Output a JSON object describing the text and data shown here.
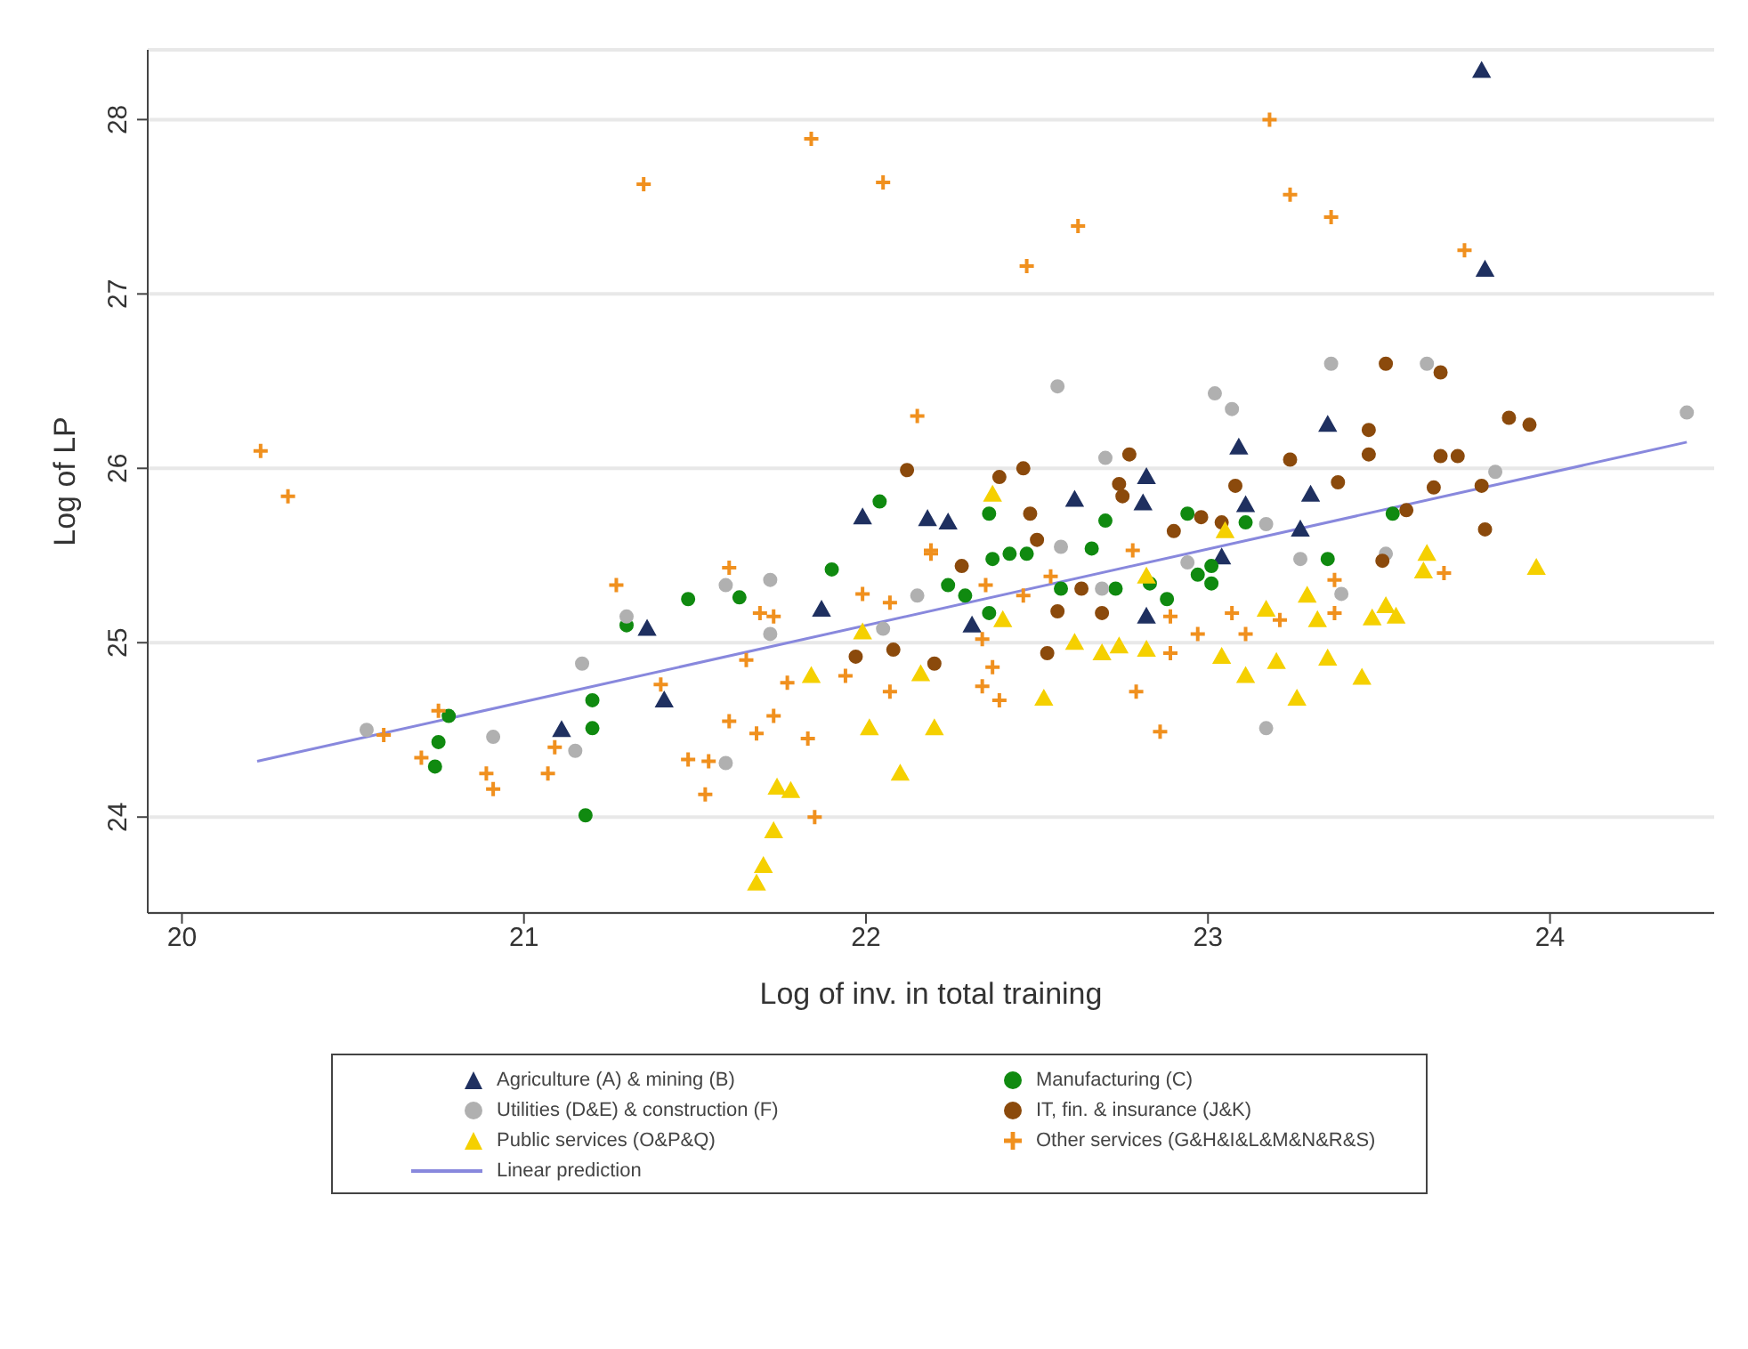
{
  "chart_data": {
    "type": "scatter",
    "xlabel": "Log of inv. in total training",
    "ylabel": "Log of LP",
    "xlim": [
      19.9,
      24.48
    ],
    "ylim": [
      23.45,
      28.4
    ],
    "xticks": [
      20,
      21,
      22,
      23,
      24
    ],
    "yticks": [
      24,
      25,
      26,
      27,
      28
    ],
    "grid": "y",
    "legend": "bottom",
    "series": [
      {
        "name": "Agriculture (A) & mining (B)",
        "color": "#1f3060",
        "marker": "triangle",
        "x": [
          23.8,
          23.81,
          23.35,
          23.09,
          23.3,
          22.81,
          22.61,
          22.24,
          21.99,
          22.18,
          21.87,
          21.36,
          21.41,
          21.11,
          22.82,
          23.11,
          23.27,
          23.04,
          22.82,
          22.31
        ],
        "values": [
          28.28,
          27.14,
          26.25,
          26.12,
          25.85,
          25.8,
          25.82,
          25.69,
          25.72,
          25.71,
          25.19,
          25.08,
          24.67,
          24.5,
          25.95,
          25.79,
          25.65,
          25.49,
          25.15,
          25.1
        ]
      },
      {
        "name": "Manufacturing (C)",
        "color": "#108a10",
        "marker": "circle",
        "x": [
          20.75,
          20.74,
          20.78,
          21.2,
          21.2,
          21.18,
          21.3,
          21.48,
          21.63,
          21.9,
          22.04,
          22.24,
          22.29,
          22.36,
          22.36,
          22.37,
          22.42,
          22.47,
          22.57,
          22.66,
          22.7,
          22.73,
          22.83,
          22.88,
          22.94,
          22.97,
          23.01,
          23.01,
          23.11,
          23.35,
          23.54
        ],
        "values": [
          24.43,
          24.29,
          24.58,
          24.67,
          24.51,
          24.01,
          25.1,
          25.25,
          25.26,
          25.42,
          25.81,
          25.33,
          25.27,
          25.17,
          25.74,
          25.48,
          25.51,
          25.51,
          25.31,
          25.54,
          25.7,
          25.31,
          25.34,
          25.25,
          25.74,
          25.39,
          25.44,
          25.34,
          25.69,
          25.48,
          25.74
        ]
      },
      {
        "name": "Utilities (D&E) & construction (F)",
        "color": "#b0b0b0",
        "marker": "circle",
        "x": [
          20.54,
          20.91,
          21.17,
          21.15,
          21.3,
          21.59,
          21.72,
          21.72,
          21.59,
          22.05,
          22.15,
          22.57,
          22.94,
          23.17,
          23.27,
          23.39,
          23.52,
          23.17,
          22.69,
          22.56,
          23.02,
          23.07,
          23.36,
          23.64,
          22.7,
          23.84,
          24.4
        ],
        "values": [
          24.5,
          24.46,
          24.88,
          24.38,
          25.15,
          25.33,
          25.36,
          25.05,
          24.31,
          25.08,
          25.27,
          25.55,
          25.46,
          25.68,
          25.48,
          25.28,
          25.51,
          24.51,
          25.31,
          26.47,
          26.43,
          26.34,
          26.6,
          26.6,
          26.06,
          25.98,
          26.32
        ]
      },
      {
        "name": "IT, fin. & insurance (J&K)",
        "color": "#8b4a0c",
        "marker": "circle",
        "x": [
          23.52,
          23.68,
          23.47,
          23.47,
          23.68,
          23.73,
          23.88,
          23.94,
          23.24,
          23.38,
          22.77,
          22.46,
          22.39,
          23.08,
          22.12,
          22.74,
          22.75,
          23.66,
          23.8,
          23.81,
          23.58,
          23.51,
          22.48,
          22.5,
          22.9,
          22.98,
          23.04,
          22.28,
          22.56,
          22.63,
          22.69,
          22.53,
          22.2,
          21.97,
          22.08
        ],
        "values": [
          26.6,
          26.55,
          26.22,
          26.08,
          26.07,
          26.07,
          26.29,
          26.25,
          26.05,
          25.92,
          26.08,
          26.0,
          25.95,
          25.9,
          25.99,
          25.91,
          25.84,
          25.89,
          25.9,
          25.65,
          25.76,
          25.47,
          25.74,
          25.59,
          25.64,
          25.72,
          25.69,
          25.44,
          25.18,
          25.31,
          25.17,
          24.94,
          24.88,
          24.92,
          24.96
        ]
      },
      {
        "name": "Public services (O&P&Q)",
        "color": "#f5d000",
        "marker": "triangle",
        "x": [
          22.01,
          22.1,
          21.74,
          21.78,
          21.73,
          21.7,
          21.68,
          21.84,
          21.99,
          22.16,
          22.2,
          22.52,
          22.4,
          22.61,
          22.69,
          22.74,
          22.82,
          23.04,
          23.11,
          23.2,
          23.17,
          23.26,
          23.35,
          23.29,
          23.32,
          23.45,
          23.48,
          23.52,
          23.55,
          23.63,
          23.64,
          23.96,
          22.37,
          23.05,
          22.82
        ],
        "values": [
          24.51,
          24.25,
          24.17,
          24.15,
          23.92,
          23.72,
          23.62,
          24.81,
          25.06,
          24.82,
          24.51,
          24.68,
          25.13,
          25.0,
          24.94,
          24.98,
          24.96,
          24.92,
          24.81,
          24.89,
          25.19,
          24.68,
          24.91,
          25.27,
          25.13,
          24.8,
          25.14,
          25.21,
          25.15,
          25.41,
          25.51,
          25.43,
          25.85,
          25.64,
          25.38
        ]
      },
      {
        "name": "Other services (G&H&I&L&M&N&R&S)",
        "color": "#f0901e",
        "marker": "cross",
        "x": [
          21.84,
          21.35,
          22.05,
          20.23,
          22.15,
          20.31,
          23.18,
          23.24,
          23.36,
          22.62,
          22.47,
          23.75,
          21.27,
          21.6,
          21.69,
          21.73,
          21.65,
          21.4,
          20.75,
          20.59,
          20.7,
          20.89,
          20.91,
          21.07,
          21.09,
          21.48,
          21.54,
          21.53,
          21.6,
          21.68,
          21.73,
          21.77,
          21.83,
          21.85,
          21.99,
          22.07,
          22.19,
          22.07,
          21.94,
          22.19,
          22.35,
          22.34,
          22.37,
          22.34,
          22.39,
          22.54,
          22.78,
          22.79,
          22.89,
          22.89,
          22.97,
          23.07,
          23.11,
          23.21,
          23.37,
          23.37,
          23.69,
          22.86,
          22.46
        ],
        "values": [
          27.89,
          27.63,
          27.64,
          26.1,
          26.3,
          25.84,
          28.0,
          27.57,
          27.44,
          27.39,
          27.16,
          27.25,
          25.33,
          25.43,
          25.17,
          25.15,
          24.9,
          24.76,
          24.61,
          24.47,
          24.34,
          24.25,
          24.16,
          24.25,
          24.4,
          24.33,
          24.32,
          24.13,
          24.55,
          24.48,
          24.58,
          24.77,
          24.45,
          24.0,
          25.28,
          25.23,
          25.51,
          24.72,
          24.81,
          25.53,
          25.33,
          25.02,
          24.86,
          24.75,
          24.67,
          25.38,
          25.53,
          24.72,
          24.94,
          25.15,
          25.05,
          25.17,
          25.05,
          25.13,
          25.36,
          25.17,
          25.4,
          24.49,
          25.27
        ]
      },
      {
        "name": "Linear prediction",
        "type": "line",
        "color": "#8888dd",
        "marker": "none",
        "x": [
          20.22,
          24.4
        ],
        "values": [
          24.32,
          26.15
        ]
      }
    ]
  }
}
